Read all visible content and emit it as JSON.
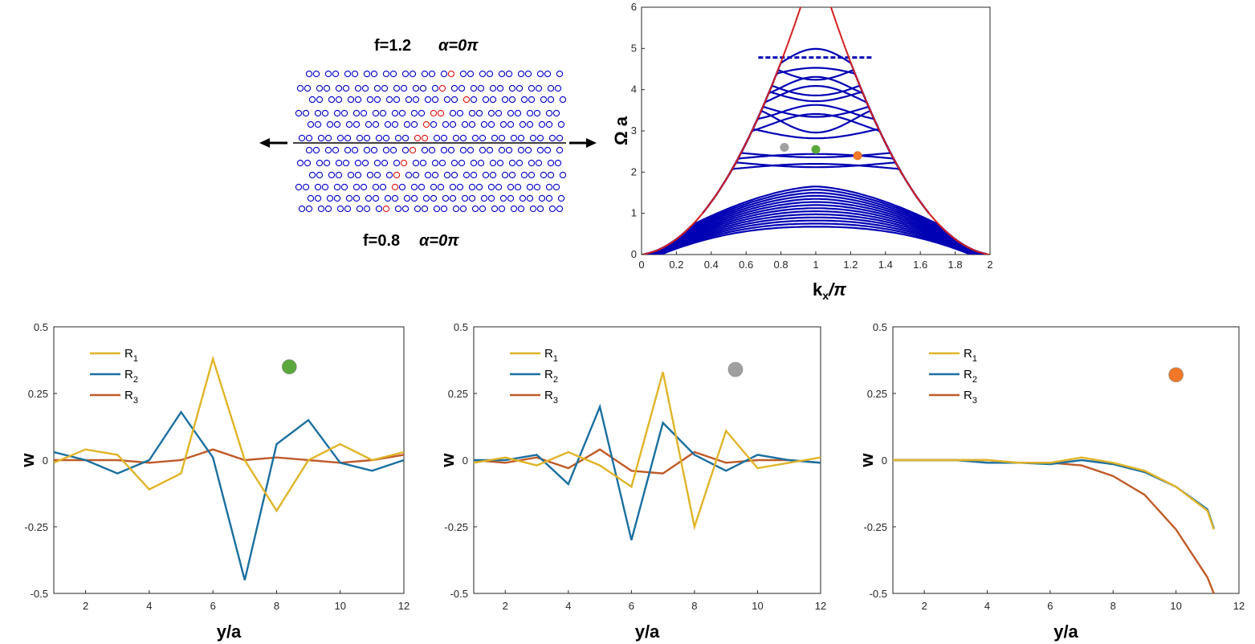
{
  "lattice": {
    "top_label": "f=1.2",
    "top_alpha": "α=0π",
    "bottom_label": "f=0.8",
    "bottom_alpha": "α=0π"
  },
  "colors": {
    "circle_blue": "#0000c8",
    "circle_red": "#e01010",
    "band_blue": "#0000b4",
    "light_cone": "#d42020",
    "R1": "#e0b428",
    "R2": "#1a6fa0",
    "R3": "#c05a28",
    "marker_green": "#5aa83c",
    "marker_gray": "#a0a0a0",
    "marker_orange": "#f07828"
  },
  "chart_data": [
    {
      "id": "band",
      "type": "line",
      "title": "",
      "xlabel": "k_x/π",
      "ylabel": "Ω a",
      "xlim": [
        0,
        2
      ],
      "ylim": [
        0,
        6
      ],
      "xticks": [
        "0",
        "0.2",
        "0.4",
        "0.6",
        "0.8",
        "1",
        "1.2",
        "1.4",
        "1.6",
        "1.8",
        "2"
      ],
      "yticks": [
        "0",
        "1",
        "2",
        "3",
        "4",
        "5",
        "6"
      ],
      "markers": [
        {
          "name": "gray",
          "x": 0.82,
          "y": 2.6
        },
        {
          "name": "green",
          "x": 1.0,
          "y": 2.55
        },
        {
          "name": "orange",
          "x": 1.24,
          "y": 2.4
        }
      ]
    },
    {
      "id": "mode_green",
      "type": "line",
      "xlabel": "y/a",
      "ylabel": "w",
      "xlim": [
        1,
        12
      ],
      "ylim": [
        -0.5,
        0.5
      ],
      "xticks": [
        "2",
        "4",
        "6",
        "8",
        "10",
        "12"
      ],
      "yticks": [
        "-0.5",
        "-0.25",
        "0",
        "0.25",
        "0.5"
      ],
      "marker": "green",
      "marker_pos": {
        "x": 8.4,
        "y": 0.35
      },
      "x": [
        1,
        2,
        3,
        4,
        5,
        6,
        7,
        8,
        9,
        10,
        11,
        12
      ],
      "series": [
        {
          "name": "R1",
          "label": "R",
          "sub": "1",
          "values": [
            -0.01,
            0.04,
            0.02,
            -0.11,
            -0.05,
            0.38,
            0.0,
            -0.19,
            0.0,
            0.06,
            0.0,
            0.03
          ]
        },
        {
          "name": "R2",
          "label": "R",
          "sub": "2",
          "values": [
            0.03,
            0.0,
            -0.05,
            0.0,
            0.18,
            0.01,
            -0.45,
            0.06,
            0.15,
            -0.01,
            -0.04,
            0.0
          ]
        },
        {
          "name": "R3",
          "label": "R",
          "sub": "3",
          "values": [
            0.0,
            0.0,
            0.0,
            -0.01,
            0.0,
            0.04,
            0.0,
            0.01,
            0.0,
            -0.01,
            0.0,
            0.02
          ]
        }
      ]
    },
    {
      "id": "mode_gray",
      "type": "line",
      "xlabel": "y/a",
      "ylabel": "w",
      "xlim": [
        1,
        12
      ],
      "ylim": [
        -0.5,
        0.5
      ],
      "xticks": [
        "2",
        "4",
        "6",
        "8",
        "10",
        "12"
      ],
      "yticks": [
        "-0.5",
        "-0.25",
        "0",
        "0.25",
        "0.5"
      ],
      "marker": "gray",
      "marker_pos": {
        "x": 9.3,
        "y": 0.34
      },
      "x": [
        1,
        2,
        3,
        4,
        5,
        6,
        7,
        8,
        9,
        10,
        11,
        12
      ],
      "series": [
        {
          "name": "R1",
          "label": "R",
          "sub": "1",
          "values": [
            -0.01,
            0.01,
            -0.02,
            0.03,
            -0.02,
            -0.1,
            0.33,
            -0.25,
            0.11,
            -0.03,
            -0.01,
            0.01
          ]
        },
        {
          "name": "R2",
          "label": "R",
          "sub": "2",
          "values": [
            0.0,
            0.0,
            0.02,
            -0.09,
            0.2,
            -0.3,
            0.14,
            0.02,
            -0.04,
            0.02,
            0.0,
            -0.01
          ]
        },
        {
          "name": "R3",
          "label": "R",
          "sub": "3",
          "values": [
            0.0,
            -0.01,
            0.01,
            -0.03,
            0.04,
            -0.04,
            -0.05,
            0.03,
            -0.01,
            0.0,
            0.0,
            -0.01
          ]
        }
      ]
    },
    {
      "id": "mode_orange",
      "type": "line",
      "xlabel": "y/a",
      "ylabel": "w",
      "xlim": [
        1,
        12
      ],
      "ylim": [
        -0.5,
        0.5
      ],
      "xticks": [
        "2",
        "4",
        "6",
        "8",
        "10",
        "12"
      ],
      "yticks": [
        "-0.5",
        "-0.25",
        "0",
        "0.25",
        "0.5"
      ],
      "marker": "orange",
      "marker_pos": {
        "x": 10.0,
        "y": 0.32
      },
      "x": [
        1,
        2,
        3,
        4,
        5,
        6,
        7,
        8,
        9,
        10,
        11,
        11.2
      ],
      "series": [
        {
          "name": "R1",
          "label": "R",
          "sub": "1",
          "values": [
            0.0,
            0.0,
            0.0,
            0.0,
            -0.01,
            -0.01,
            0.01,
            -0.01,
            -0.04,
            -0.1,
            -0.19,
            -0.26
          ]
        },
        {
          "name": "R2",
          "label": "R",
          "sub": "2",
          "values": [
            0.0,
            0.0,
            0.0,
            -0.01,
            -0.01,
            -0.015,
            0.0,
            -0.015,
            -0.045,
            -0.1,
            -0.185,
            -0.255
          ]
        },
        {
          "name": "R3",
          "label": "R",
          "sub": "3",
          "values": [
            0.0,
            0.0,
            0.0,
            0.0,
            -0.01,
            -0.01,
            -0.02,
            -0.06,
            -0.13,
            -0.26,
            -0.44,
            -0.5
          ]
        }
      ]
    }
  ]
}
